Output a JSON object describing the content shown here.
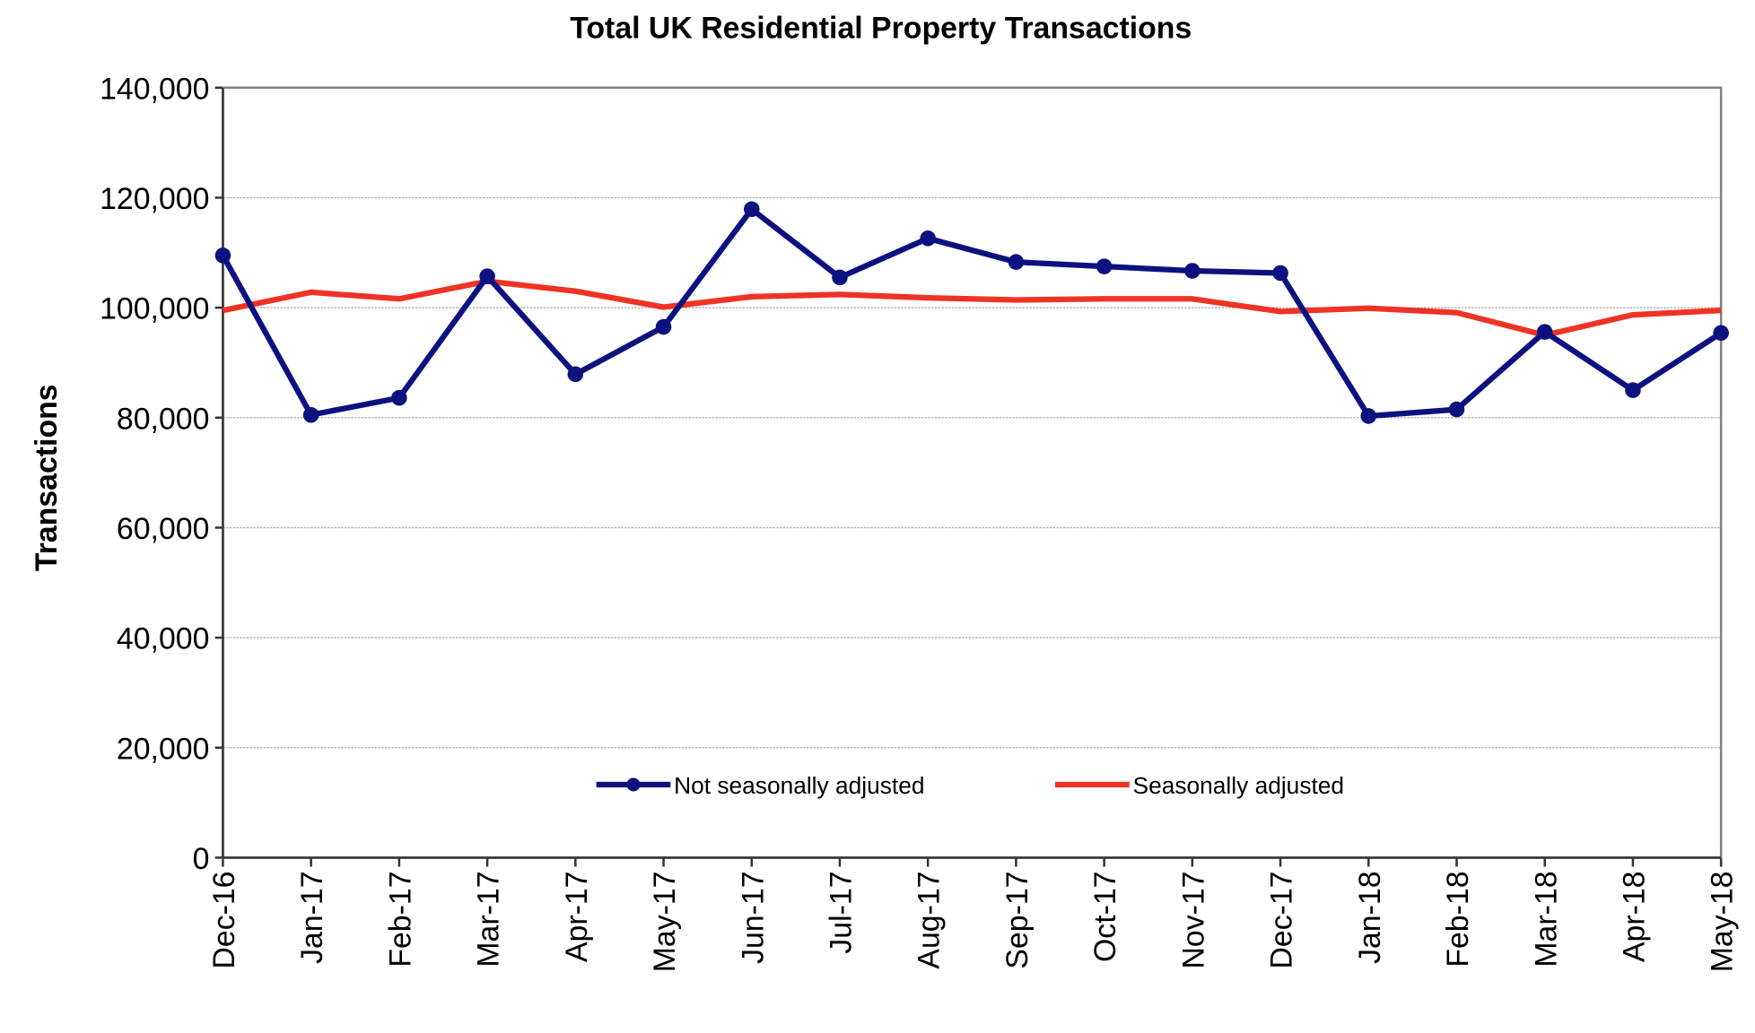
{
  "chart_data": {
    "type": "line",
    "title": "Total UK Residential Property Transactions",
    "xlabel": "",
    "ylabel": "Transactions",
    "ylim": [
      0,
      140000
    ],
    "yticks": [
      "0",
      "20,000",
      "40,000",
      "60,000",
      "80,000",
      "100,000",
      "120,000",
      "140,000"
    ],
    "ytick_values": [
      0,
      20000,
      40000,
      60000,
      80000,
      100000,
      120000,
      140000
    ],
    "grid": true,
    "legend_position": "bottom-center",
    "categories": [
      "Dec-16",
      "Jan-17",
      "Feb-17",
      "Mar-17",
      "Apr-17",
      "May-17",
      "Jun-17",
      "Jul-17",
      "Aug-17",
      "Sep-17",
      "Oct-17",
      "Nov-17",
      "Dec-17",
      "Jan-18",
      "Feb-18",
      "Mar-18",
      "Apr-18",
      "May-18"
    ],
    "series": [
      {
        "name": "Not seasonally adjusted",
        "color": "#0d1180",
        "markers": true,
        "values": [
          109500,
          80500,
          83600,
          105700,
          87900,
          96500,
          117900,
          105500,
          112600,
          108300,
          107500,
          106700,
          106300,
          80300,
          81500,
          95600,
          85000,
          95400
        ]
      },
      {
        "name": "Seasonally adjusted",
        "color": "#ee3224",
        "markers": false,
        "values": [
          99500,
          102800,
          101600,
          104800,
          103000,
          100100,
          102000,
          102400,
          101800,
          101400,
          101600,
          101600,
          99300,
          99900,
          99100,
          95000,
          98700,
          99500
        ]
      }
    ]
  }
}
